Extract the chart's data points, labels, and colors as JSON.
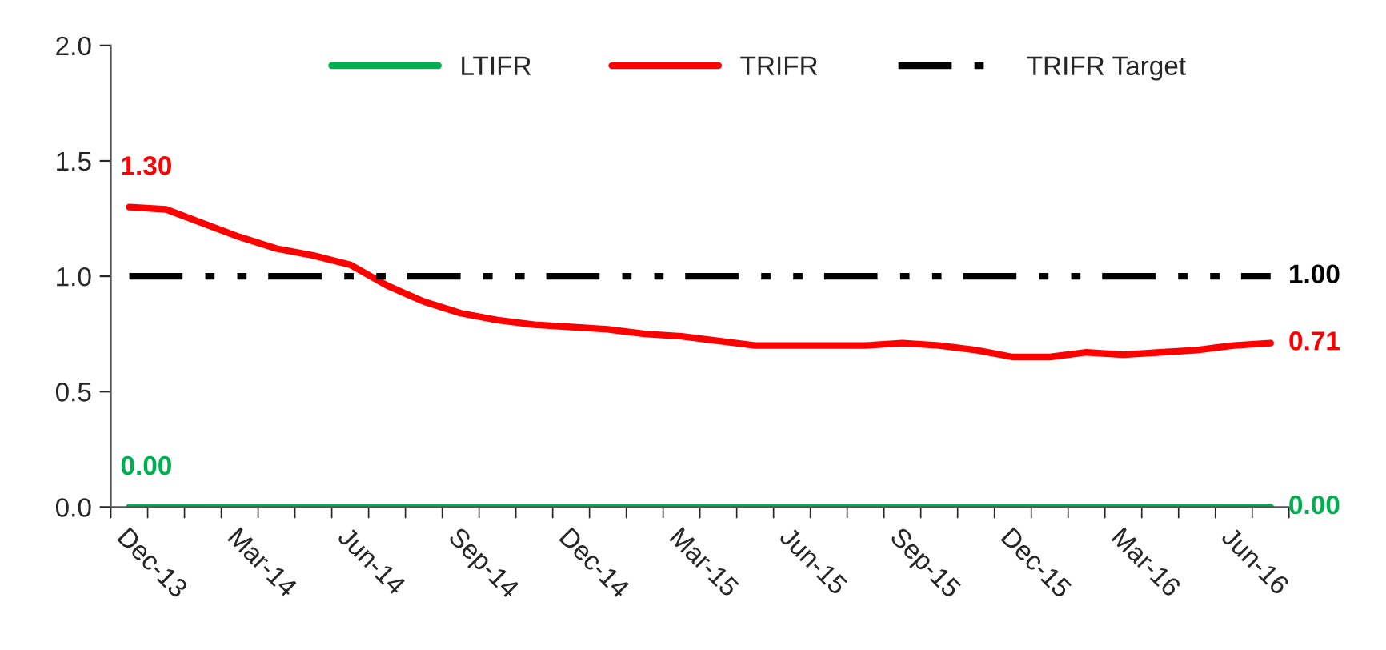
{
  "chart_data": {
    "type": "line",
    "categories": [
      "Dec-13",
      null,
      null,
      "Mar-14",
      null,
      null,
      "Jun-14",
      null,
      null,
      "Sep-14",
      null,
      null,
      "Dec-14",
      null,
      null,
      "Mar-15",
      null,
      null,
      "Jun-15",
      null,
      null,
      "Sep-15",
      null,
      null,
      "Dec-15",
      null,
      null,
      "Mar-16",
      null,
      null,
      "Jun-16",
      null
    ],
    "series": [
      {
        "name": "LTIFR",
        "color": "#00b050",
        "values": [
          0,
          0,
          0,
          0,
          0,
          0,
          0,
          0,
          0,
          0,
          0,
          0,
          0,
          0,
          0,
          0,
          0,
          0,
          0,
          0,
          0,
          0,
          0,
          0,
          0,
          0,
          0,
          0,
          0,
          0,
          0,
          0
        ],
        "value_labels": [
          "0.00",
          null,
          null,
          null,
          null,
          null,
          null,
          null,
          null,
          null,
          null,
          null,
          null,
          null,
          null,
          null,
          null,
          null,
          null,
          null,
          null,
          null,
          null,
          null,
          null,
          null,
          null,
          null,
          null,
          null,
          null,
          "0.00"
        ]
      },
      {
        "name": "TRIFR",
        "color": "#ff0000",
        "values": [
          1.3,
          1.29,
          1.23,
          1.17,
          1.12,
          1.09,
          1.05,
          0.96,
          0.89,
          0.84,
          0.81,
          0.79,
          0.78,
          0.77,
          0.75,
          0.74,
          0.72,
          0.7,
          0.7,
          0.7,
          0.7,
          0.71,
          0.7,
          0.68,
          0.65,
          0.65,
          0.67,
          0.66,
          0.67,
          0.68,
          0.7,
          0.71
        ],
        "value_labels": [
          "1.30",
          null,
          null,
          null,
          null,
          null,
          null,
          null,
          null,
          null,
          null,
          null,
          null,
          null,
          null,
          null,
          null,
          null,
          null,
          null,
          null,
          null,
          null,
          null,
          null,
          null,
          null,
          null,
          null,
          null,
          null,
          "0.71"
        ]
      },
      {
        "name": "TRIFR Target",
        "color": "#000000",
        "line_style": "dashdot",
        "values": [
          1,
          1,
          1,
          1,
          1,
          1,
          1,
          1,
          1,
          1,
          1,
          1,
          1,
          1,
          1,
          1,
          1,
          1,
          1,
          1,
          1,
          1,
          1,
          1,
          1,
          1,
          1,
          1,
          1,
          1,
          1,
          1
        ],
        "value_labels": [
          null,
          null,
          null,
          null,
          null,
          null,
          null,
          null,
          null,
          null,
          null,
          null,
          null,
          null,
          null,
          null,
          null,
          null,
          null,
          null,
          null,
          null,
          null,
          null,
          null,
          null,
          null,
          null,
          null,
          null,
          null,
          "1.00"
        ]
      }
    ],
    "ylim": [
      0,
      2
    ],
    "yticks": [
      {
        "value": 0,
        "label": "0.0"
      },
      {
        "value": 0.5,
        "label": "0.5"
      },
      {
        "value": 1,
        "label": "1.0"
      },
      {
        "value": 1.5,
        "label": "1.5"
      },
      {
        "value": 2,
        "label": "2.0"
      }
    ],
    "legend": "top",
    "grid": false,
    "marker": "none"
  }
}
